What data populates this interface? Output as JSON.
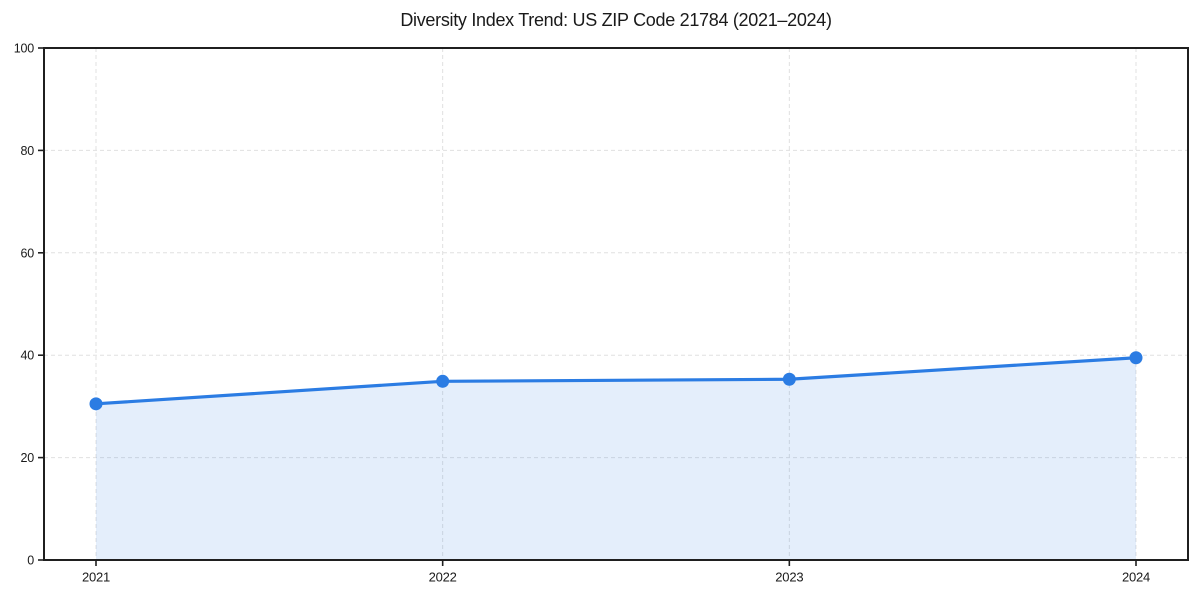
{
  "chart_data": {
    "type": "area",
    "title": "Diversity Index Trend: US ZIP Code 21784 (2021–2024)",
    "categories": [
      "2021",
      "2022",
      "2023",
      "2024"
    ],
    "series": [
      {
        "name": "Diversity Index",
        "values": [
          30.5,
          34.9,
          35.3,
          39.5
        ]
      }
    ],
    "xlabel": "",
    "ylabel": "",
    "ylim": [
      0,
      100
    ],
    "yticks": [
      0,
      20,
      40,
      60,
      80,
      100
    ],
    "grid": true,
    "grid_style": "dashed",
    "legend_position": "none",
    "marker": "circle",
    "colors": {
      "line": "#2b7ce3",
      "marker": "#2b7ce3",
      "area_fill": "rgba(43, 124, 227, 0.13)",
      "grid": "#e0e0e0",
      "spine": "#1f1f1f",
      "text": "#1a1a1a",
      "background": "#ffffff"
    }
  }
}
